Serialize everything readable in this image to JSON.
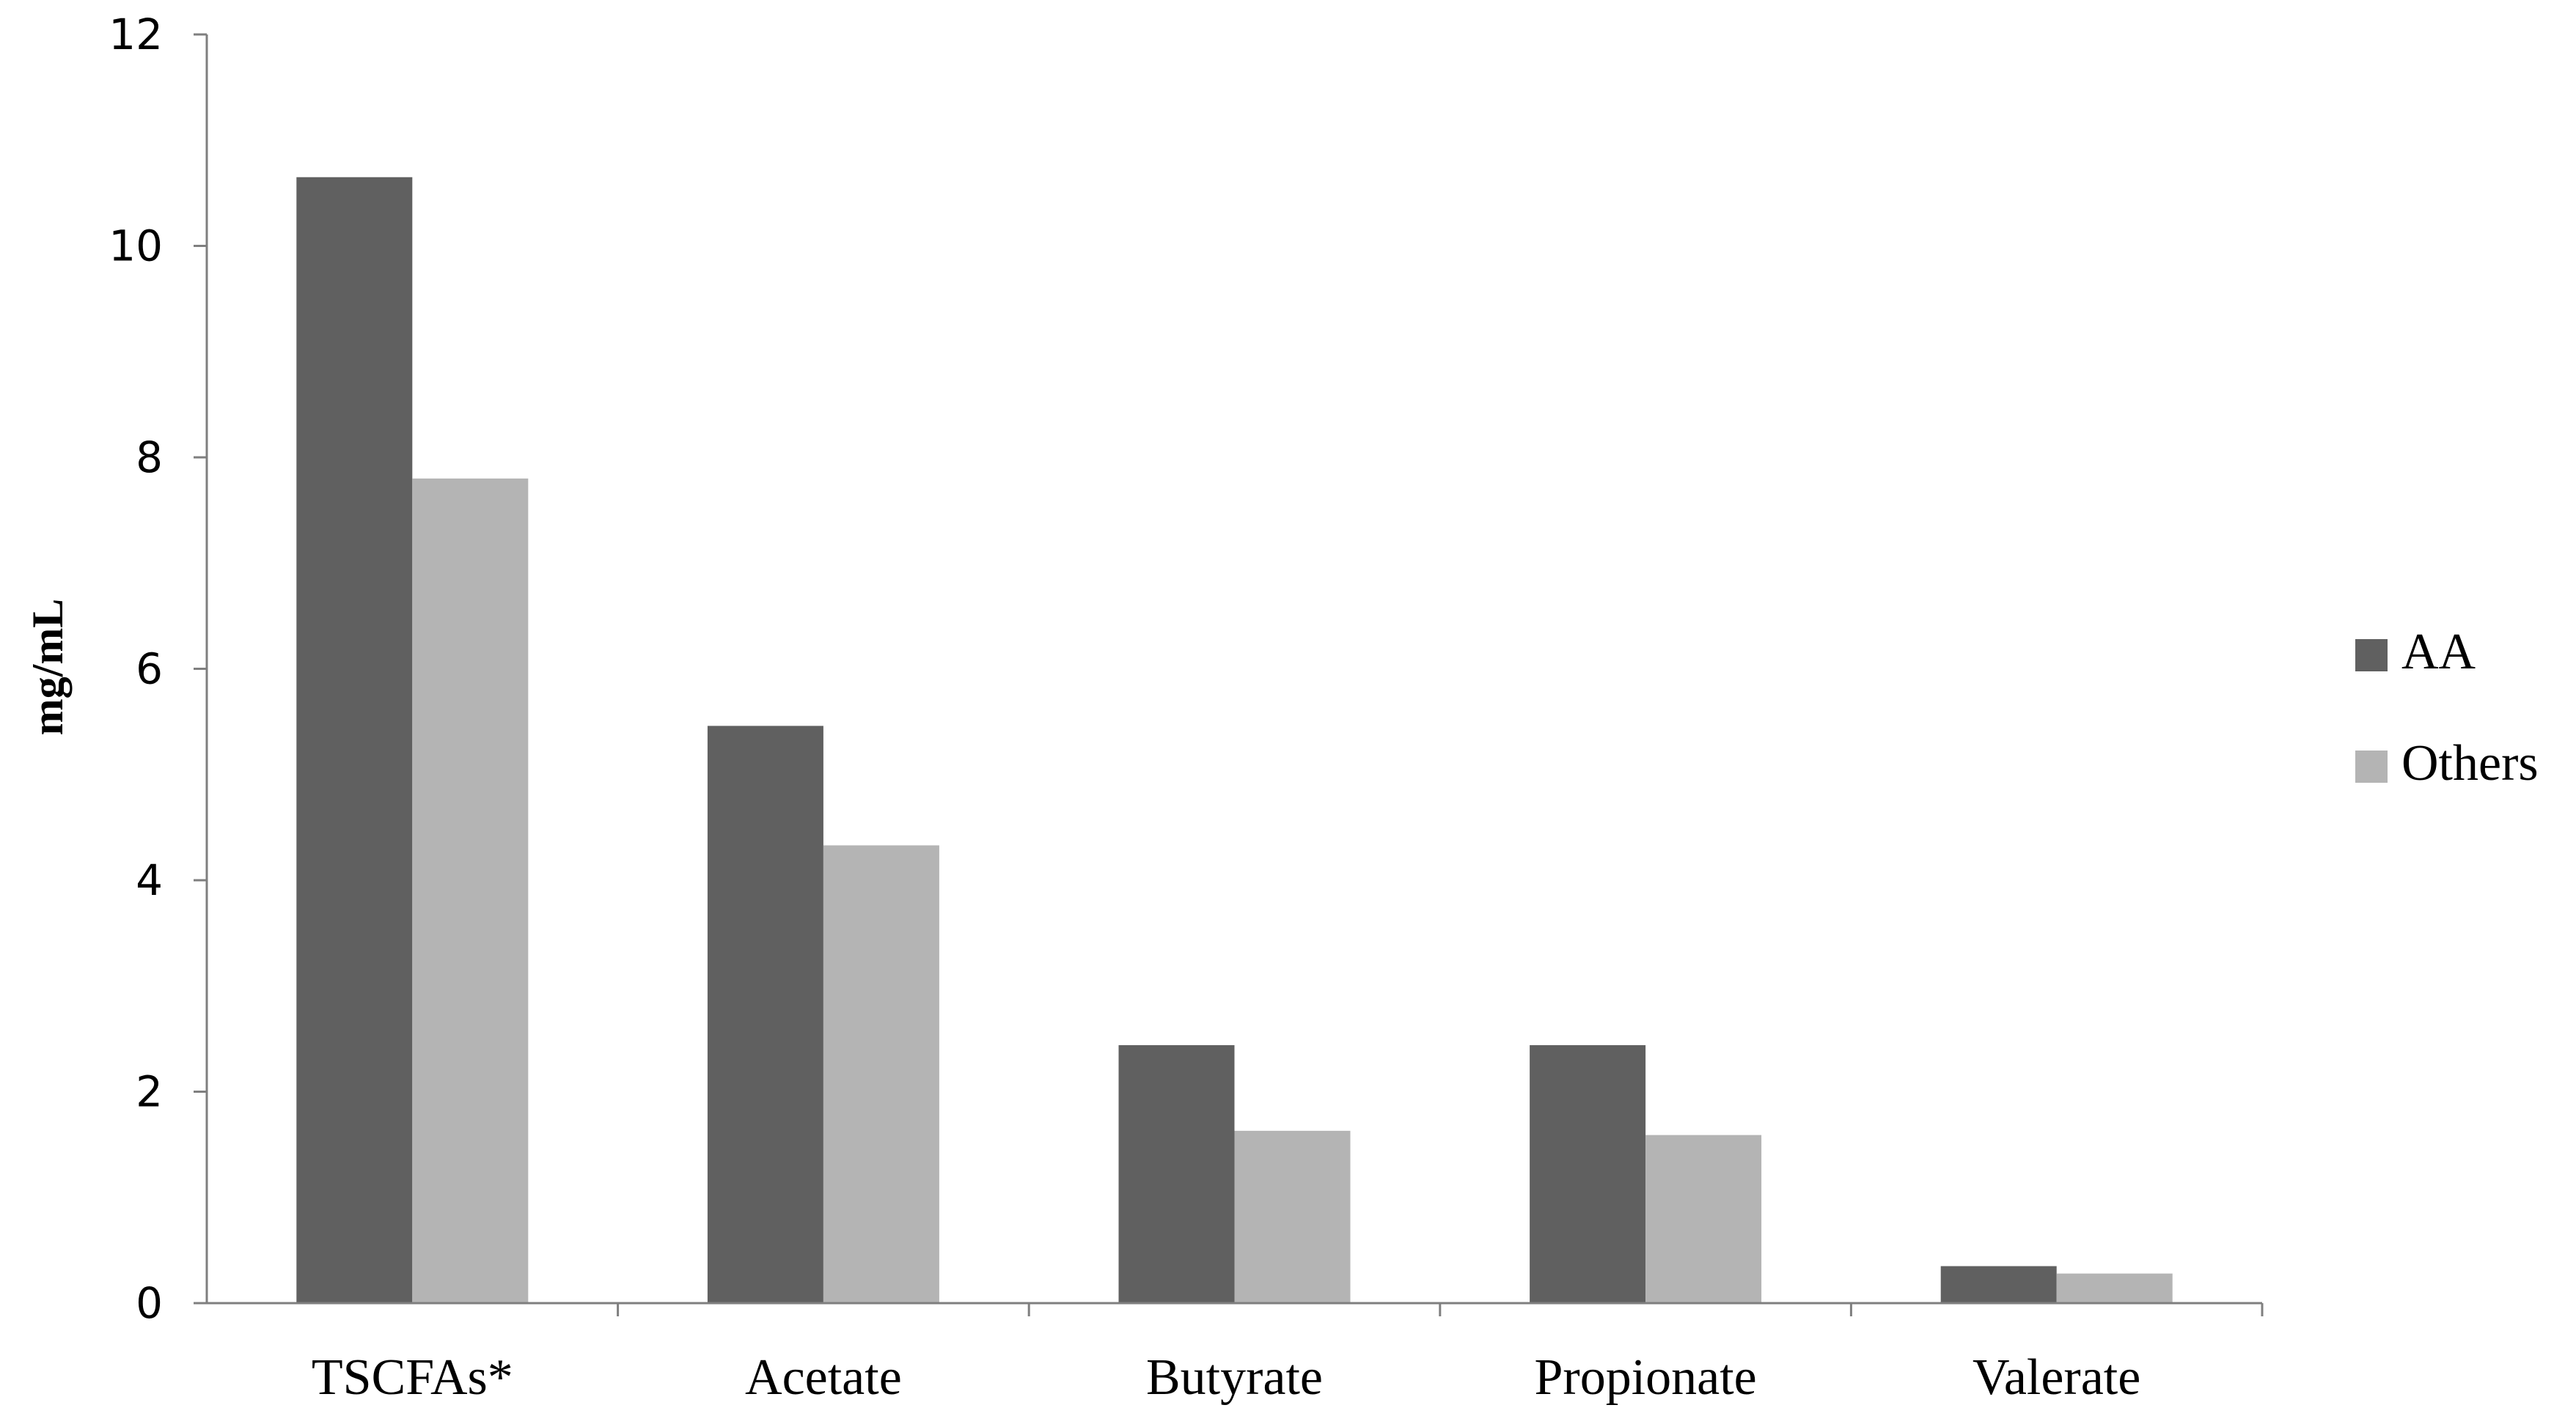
{
  "chart_data": {
    "type": "bar",
    "categories": [
      "TSCFAs*",
      "Acetate",
      "Butyrate",
      "Propionate",
      "Valerate"
    ],
    "series": [
      {
        "name": "AA",
        "color": "#606060",
        "values": [
          10.65,
          5.46,
          2.44,
          2.44,
          0.35
        ]
      },
      {
        "name": "Others",
        "color": "#b4b4b4",
        "values": [
          7.8,
          4.33,
          1.63,
          1.59,
          0.28
        ]
      }
    ],
    "ylabel": "mg/mL",
    "xlabel": "",
    "ylim": [
      0,
      12
    ],
    "yticks": [
      "0",
      "2",
      "4",
      "6",
      "8",
      "10",
      "12"
    ],
    "grid": false,
    "legend_position": "right"
  }
}
